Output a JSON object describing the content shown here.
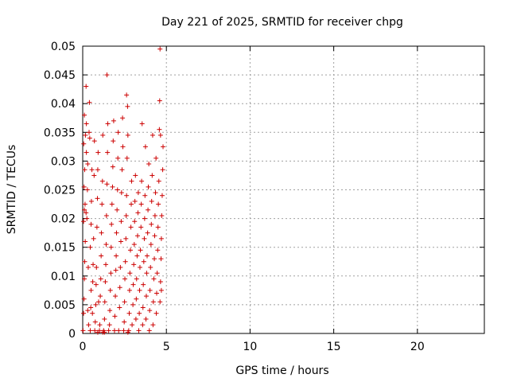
{
  "chart_data": {
    "type": "scatter",
    "title": "Day 221 of 2025, SRMTID for receiver chpg",
    "xlabel": "GPS time / hours",
    "ylabel": "SRMTID / TECUs",
    "xlim": [
      0,
      24
    ],
    "ylim": [
      0,
      0.05
    ],
    "x_ticks": [
      "0",
      "5",
      "10",
      "15",
      "20"
    ],
    "y_ticks": [
      "0",
      "0.005",
      "0.01",
      "0.015",
      "0.02",
      "0.025",
      "0.03",
      "0.035",
      "0.04",
      "0.045",
      "0.05"
    ],
    "grid": true,
    "marker": "plus",
    "marker_color": "#cc0000",
    "series": [
      {
        "points": [
          [
            0.02,
            0.0005
          ],
          [
            0.05,
            0.0035
          ],
          [
            0.08,
            0.006
          ],
          [
            0.1,
            0.0095
          ],
          [
            0.12,
            0.0125
          ],
          [
            0.15,
            0.016
          ],
          [
            0.05,
            0.0195
          ],
          [
            0.1,
            0.0215
          ],
          [
            0.14,
            0.0225
          ],
          [
            0.08,
            0.0255
          ],
          [
            0.12,
            0.0285
          ],
          [
            0.06,
            0.033
          ],
          [
            0.16,
            0.0345
          ],
          [
            0.1,
            0.038
          ],
          [
            0.2,
            0.043
          ],
          [
            0.22,
            0.0365
          ],
          [
            0.2,
            0.021
          ],
          [
            0.25,
            0.02
          ],
          [
            0.28,
            0.025
          ],
          [
            0.3,
            0.0295
          ],
          [
            0.22,
            0.0315
          ],
          [
            0.3,
            0.004
          ],
          [
            0.35,
            0.0015
          ],
          [
            0.33,
            0.0115
          ],
          [
            0.38,
            0.035
          ],
          [
            0.4,
            0.0402
          ],
          [
            0.42,
            0.034
          ],
          [
            0.45,
            0.0005
          ],
          [
            0.48,
            0.0045
          ],
          [
            0.5,
            0.0075
          ],
          [
            0.45,
            0.015
          ],
          [
            0.5,
            0.019
          ],
          [
            0.52,
            0.023
          ],
          [
            0.55,
            0.0285
          ],
          [
            0.58,
            0.0035
          ],
          [
            0.6,
            0.009
          ],
          [
            0.62,
            0.012
          ],
          [
            0.65,
            0.0165
          ],
          [
            0.68,
            0.0275
          ],
          [
            0.7,
            0.0335
          ],
          [
            0.72,
            0.0005
          ],
          [
            0.75,
            0.002
          ],
          [
            0.78,
            0.005
          ],
          [
            0.8,
            0.0085
          ],
          [
            0.82,
            0.0115
          ],
          [
            0.85,
            0.0185
          ],
          [
            0.88,
            0.0235
          ],
          [
            0.9,
            0.0285
          ],
          [
            0.92,
            0.0315
          ],
          [
            0.95,
            0.0055
          ],
          [
            1.0,
            0.0005
          ],
          [
            1.02,
            0.0015
          ],
          [
            1.05,
            0.0065
          ],
          [
            1.08,
            0.0095
          ],
          [
            1.1,
            0.0135
          ],
          [
            1.12,
            0.0175
          ],
          [
            1.15,
            0.0225
          ],
          [
            1.18,
            0.0265
          ],
          [
            1.2,
            0.0345
          ],
          [
            1.25,
            0.0005
          ],
          [
            1.3,
            0.0025
          ],
          [
            1.32,
            0.0055
          ],
          [
            1.35,
            0.009
          ],
          [
            1.38,
            0.012
          ],
          [
            1.4,
            0.0155
          ],
          [
            1.42,
            0.0205
          ],
          [
            1.45,
            0.026
          ],
          [
            1.48,
            0.0315
          ],
          [
            1.5,
            0.0365
          ],
          [
            1.45,
            0.045
          ],
          [
            1.55,
            0.0005
          ],
          [
            1.6,
            0.0015
          ],
          [
            1.62,
            0.004
          ],
          [
            1.65,
            0.0075
          ],
          [
            1.68,
            0.0105
          ],
          [
            1.7,
            0.015
          ],
          [
            1.72,
            0.019
          ],
          [
            1.75,
            0.0225
          ],
          [
            1.78,
            0.0255
          ],
          [
            1.8,
            0.029
          ],
          [
            1.82,
            0.0335
          ],
          [
            1.85,
            0.037
          ],
          [
            1.9,
            0.0005
          ],
          [
            1.92,
            0.003
          ],
          [
            1.95,
            0.0065
          ],
          [
            1.98,
            0.011
          ],
          [
            2.0,
            0.0135
          ],
          [
            2.02,
            0.0175
          ],
          [
            2.05,
            0.0215
          ],
          [
            2.08,
            0.025
          ],
          [
            2.1,
            0.0305
          ],
          [
            2.12,
            0.035
          ],
          [
            2.15,
            0.0005
          ],
          [
            2.2,
            0.0045
          ],
          [
            2.22,
            0.008
          ],
          [
            2.25,
            0.0115
          ],
          [
            2.28,
            0.016
          ],
          [
            2.3,
            0.0195
          ],
          [
            2.32,
            0.0245
          ],
          [
            2.35,
            0.0285
          ],
          [
            2.38,
            0.0375
          ],
          [
            2.4,
            0.0325
          ],
          [
            2.45,
            0.0005
          ],
          [
            2.48,
            0.002
          ],
          [
            2.5,
            0.0055
          ],
          [
            2.52,
            0.0095
          ],
          [
            2.55,
            0.0125
          ],
          [
            2.58,
            0.0165
          ],
          [
            2.6,
            0.0205
          ],
          [
            2.62,
            0.024
          ],
          [
            2.65,
            0.0305
          ],
          [
            2.68,
            0.0395
          ],
          [
            2.62,
            0.0415
          ],
          [
            2.7,
            0.0345
          ],
          [
            2.75,
            0.0005
          ],
          [
            2.78,
            0.0035
          ],
          [
            2.8,
            0.0075
          ],
          [
            2.82,
            0.0105
          ],
          [
            2.85,
            0.0145
          ],
          [
            2.88,
            0.0185
          ],
          [
            2.9,
            0.0225
          ],
          [
            2.92,
            0.0265
          ],
          [
            2.95,
            0.0015
          ],
          [
            3.0,
            0.005
          ],
          [
            3.02,
            0.0085
          ],
          [
            3.05,
            0.012
          ],
          [
            3.08,
            0.0155
          ],
          [
            3.1,
            0.0195
          ],
          [
            3.12,
            0.023
          ],
          [
            3.15,
            0.0275
          ],
          [
            3.18,
            0.0025
          ],
          [
            3.2,
            0.006
          ],
          [
            3.22,
            0.0095
          ],
          [
            3.25,
            0.0135
          ],
          [
            3.28,
            0.017
          ],
          [
            3.3,
            0.021
          ],
          [
            3.32,
            0.0245
          ],
          [
            3.35,
            0.0005
          ],
          [
            3.38,
            0.0035
          ],
          [
            3.4,
            0.0075
          ],
          [
            3.42,
            0.0115
          ],
          [
            3.45,
            0.0145
          ],
          [
            3.48,
            0.0185
          ],
          [
            3.5,
            0.0225
          ],
          [
            3.52,
            0.0265
          ],
          [
            3.55,
            0.0365
          ],
          [
            3.58,
            0.0015
          ],
          [
            3.6,
            0.0045
          ],
          [
            3.62,
            0.0085
          ],
          [
            3.65,
            0.0125
          ],
          [
            3.68,
            0.0165
          ],
          [
            3.7,
            0.02
          ],
          [
            3.72,
            0.024
          ],
          [
            3.75,
            0.0325
          ],
          [
            3.78,
            0.0025
          ],
          [
            3.8,
            0.0065
          ],
          [
            3.82,
            0.0105
          ],
          [
            3.85,
            0.0135
          ],
          [
            3.88,
            0.0175
          ],
          [
            3.9,
            0.0215
          ],
          [
            3.92,
            0.0255
          ],
          [
            3.95,
            0.0295
          ],
          [
            3.98,
            0.0005
          ],
          [
            4.0,
            0.004
          ],
          [
            4.02,
            0.0075
          ],
          [
            4.05,
            0.0115
          ],
          [
            4.08,
            0.0155
          ],
          [
            4.1,
            0.019
          ],
          [
            4.12,
            0.023
          ],
          [
            4.15,
            0.0275
          ],
          [
            4.18,
            0.0345
          ],
          [
            4.2,
            0.0015
          ],
          [
            4.22,
            0.0055
          ],
          [
            4.25,
            0.0095
          ],
          [
            4.28,
            0.013
          ],
          [
            4.3,
            0.017
          ],
          [
            4.32,
            0.0205
          ],
          [
            4.35,
            0.0245
          ],
          [
            4.38,
            0.0305
          ],
          [
            4.4,
            0.0035
          ],
          [
            4.42,
            0.007
          ],
          [
            4.45,
            0.0105
          ],
          [
            4.48,
            0.0145
          ],
          [
            4.5,
            0.0185
          ],
          [
            4.52,
            0.0225
          ],
          [
            4.55,
            0.0265
          ],
          [
            4.58,
            0.0355
          ],
          [
            4.6,
            0.0405
          ],
          [
            4.62,
            0.0495
          ],
          [
            4.62,
            0.0055
          ],
          [
            4.65,
            0.009
          ],
          [
            4.68,
            0.013
          ],
          [
            4.7,
            0.0165
          ],
          [
            4.72,
            0.0205
          ],
          [
            4.75,
            0.024
          ],
          [
            4.78,
            0.0285
          ],
          [
            4.8,
            0.0325
          ],
          [
            4.7,
            0.0075
          ],
          [
            4.65,
            0.0345
          ],
          [
            1.3,
            0.0002
          ],
          [
            2.7,
            0.0002
          ],
          [
            1.2,
            0.0002
          ],
          [
            0.9,
            0.0002
          ]
        ]
      }
    ]
  }
}
